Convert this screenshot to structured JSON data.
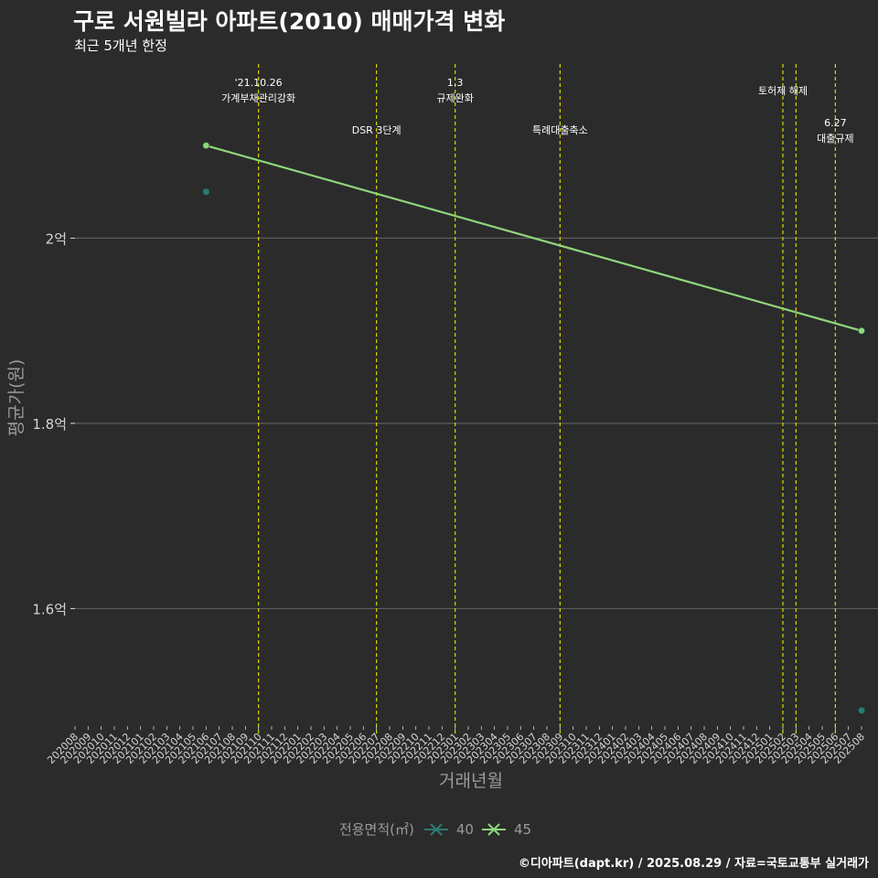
{
  "chart_data": {
    "type": "line",
    "title": "구로 서원빌라 아파트(2010) 매매가격 변화",
    "subtitle": "최근 5개년 한정",
    "xlabel": "거래년월",
    "ylabel": "평균가(원)",
    "x_categories": [
      "202008",
      "202009",
      "202010",
      "202011",
      "202012",
      "202101",
      "202102",
      "202103",
      "202104",
      "202105",
      "202106",
      "202107",
      "202108",
      "202109",
      "202110",
      "202111",
      "202112",
      "202201",
      "202202",
      "202203",
      "202204",
      "202205",
      "202206",
      "202207",
      "202208",
      "202209",
      "202210",
      "202211",
      "202212",
      "202301",
      "202302",
      "202303",
      "202304",
      "202305",
      "202306",
      "202307",
      "202308",
      "202309",
      "202310",
      "202311",
      "202312",
      "202401",
      "202402",
      "202403",
      "202404",
      "202405",
      "202406",
      "202407",
      "202408",
      "202409",
      "202410",
      "202411",
      "202412",
      "202501",
      "202502",
      "202503",
      "202504",
      "202505",
      "202506",
      "202507",
      "202508"
    ],
    "y_ticks": [
      {
        "value": 16000,
        "label": "1.6억"
      },
      {
        "value": 18000,
        "label": "1.8억"
      },
      {
        "value": 20000,
        "label": "2억"
      }
    ],
    "ylim": [
      14750,
      21900
    ],
    "series": [
      {
        "name": "40",
        "color": "#2a7b72",
        "line": false,
        "points": [
          {
            "x": "202106",
            "y": 20500
          },
          {
            "x": "202508",
            "y": 14900
          }
        ]
      },
      {
        "name": "45",
        "color": "#8fd67b",
        "line": true,
        "points": [
          {
            "x": "202106",
            "y": 21000
          },
          {
            "x": "202508",
            "y": 19000
          }
        ]
      }
    ],
    "events": [
      {
        "x": "202110",
        "line1": "'21.10.26",
        "line2": "가계부채관리강화",
        "tier": 1
      },
      {
        "x": "202207",
        "line1": "DSR 3단계",
        "line2": "",
        "tier": 2
      },
      {
        "x": "202301",
        "line1": "1.3",
        "line2": "규제완화",
        "tier": 1
      },
      {
        "x": "202309",
        "line1": "특례대출축소",
        "line2": "",
        "tier": 2
      },
      {
        "x": "202502",
        "line1": "토허제 해제",
        "line2": "",
        "tier": 3
      },
      {
        "x": "202503",
        "line1": "",
        "line2": "",
        "tier": 0
      },
      {
        "x": "202506",
        "line1": "6.27",
        "line2": "대출규제",
        "tier": 4
      }
    ],
    "legend": {
      "title": "전용면적(㎡)",
      "items": [
        "40",
        "45"
      ],
      "position": "bottom"
    }
  },
  "caption": "©디아파트(dapt.kr) / 2025.08.29 / 자료=국토교통부 실거래가",
  "colors": {
    "background": "#2b2b2b",
    "grid": "#5c5c5c",
    "event_line": "#e5e500",
    "series_40": "#2a7b72",
    "series_45": "#8fd67b",
    "axis_text": "#d4d4d4"
  }
}
